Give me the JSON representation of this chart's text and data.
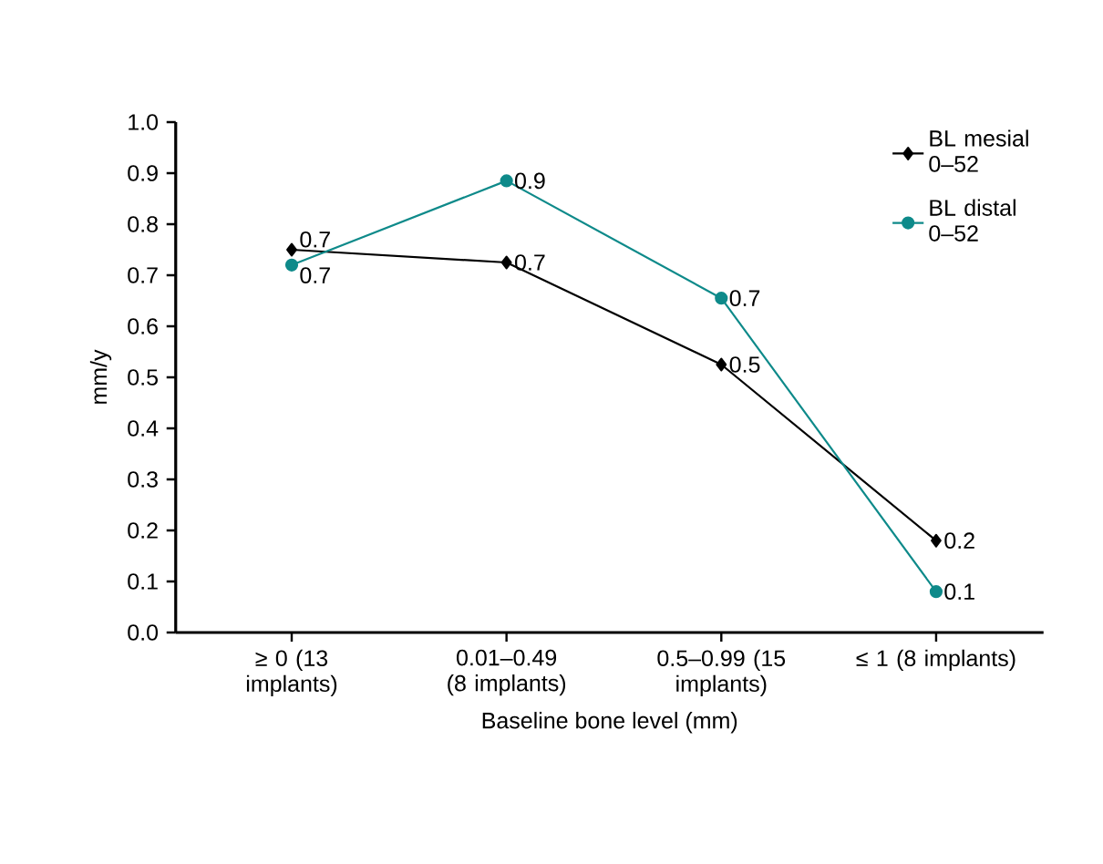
{
  "chart_data": {
    "type": "line",
    "xlabel": "Baseline bone level (mm)",
    "ylabel": "mm/y",
    "categories": [
      "≥ 0 (13 implants)",
      "0.01–0.49 (8 implants)",
      "0.5–0.99 (15 implants)",
      "≤ 1 (8 implants)"
    ],
    "series": [
      {
        "name": "BL mesial 0–52",
        "color": "#000000",
        "marker": "diamond",
        "values": [
          0.75,
          0.725,
          0.525,
          0.18
        ],
        "value_labels": [
          "0.7",
          "0.7",
          "0.5",
          "0.2"
        ]
      },
      {
        "name": "BL distal 0–52",
        "color": "#0e8a8a",
        "marker": "circle",
        "values": [
          0.72,
          0.885,
          0.655,
          0.08
        ],
        "value_labels": [
          "0.7",
          "0.9",
          "0.7",
          "0.1"
        ]
      }
    ],
    "ylim": [
      0,
      1
    ],
    "yticks": [
      {
        "value": 0,
        "label": "0.0"
      },
      0.1,
      0.2,
      0.3,
      0.4,
      0.5,
      0.6,
      0.7,
      0.8,
      0.9,
      {
        "value": 1,
        "label": "1.0"
      }
    ],
    "legend": "top right",
    "grid": false,
    "line_style": "solid"
  }
}
